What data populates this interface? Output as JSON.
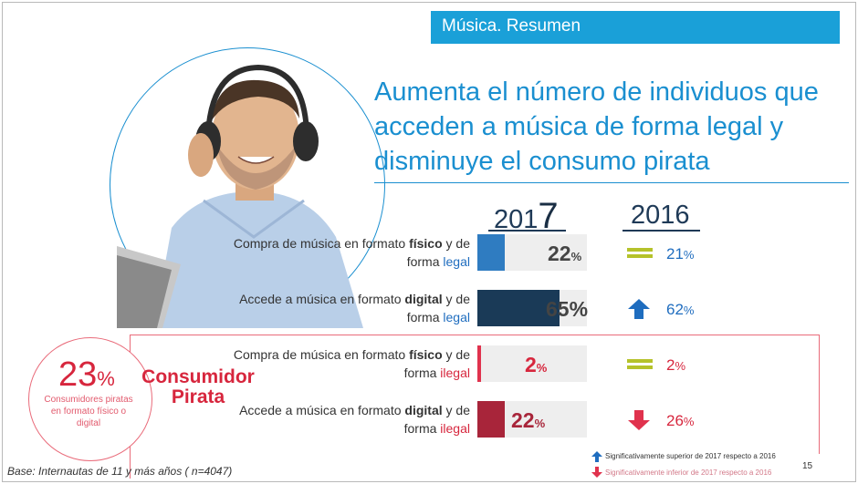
{
  "header": {
    "title": "Música. Resumen"
  },
  "headline": "Aumenta el número de individuos que acceden a música de forma legal y disminuye el consumo pirata",
  "years": {
    "current_prefix": "201",
    "current_suffix": "7",
    "previous": "2016"
  },
  "rows": [
    {
      "label_pre": "Compra de música en formato ",
      "label_bold": "físico",
      "label_mid": " y de forma ",
      "label_tag": "legal",
      "tag_type": "legal",
      "v2017": "22",
      "v2016": "21",
      "pct": "%",
      "trend": "equal",
      "color": "#2f7cc1",
      "fill": 0.22
    },
    {
      "label_pre": "Accede a música en formato ",
      "label_bold": "digital",
      "label_mid": " y de forma ",
      "label_tag": "legal",
      "tag_type": "legal",
      "v2017": "65",
      "v2016": "62",
      "pct": "%",
      "trend": "up",
      "color": "#1a3a57",
      "fill": 0.65
    },
    {
      "label_pre": "Compra de música en formato ",
      "label_bold": "físico",
      "label_mid": " y de forma ",
      "label_tag": "ilegal",
      "tag_type": "ilegal",
      "v2017": "2",
      "v2016": "2",
      "pct": "%",
      "trend": "equal",
      "color": "#e0324d",
      "fill": 0.02
    },
    {
      "label_pre": "Accede a  música en formato ",
      "label_bold": "digital",
      "label_mid": " y de forma ",
      "label_tag": "ilegal",
      "tag_type": "ilegal",
      "v2017": "22",
      "v2016": "26",
      "pct": "%",
      "trend": "down",
      "color": "#a8253a",
      "fill": 0.22
    }
  ],
  "pirate": {
    "big_number": "23",
    "big_pct": "%",
    "caption": "Consumidores piratas en formato físico o digital",
    "title_line1": "Consumidor",
    "title_line2": "Pirata"
  },
  "footer": {
    "base": "Base: Internautas de 11 y más años ( n=4047)",
    "legend_up": "Significativamente superior de 2017 respecto a 2016",
    "legend_down": "Significativamente inferior de 2017 respecto a 2016",
    "page": "15"
  },
  "colors": {
    "accent": "#1aa0d8",
    "headline": "#1a8fd0",
    "pirate": "#d7263d",
    "equal": "#b5c22a",
    "up": "#1f6dbf",
    "down": "#e0324d"
  }
}
